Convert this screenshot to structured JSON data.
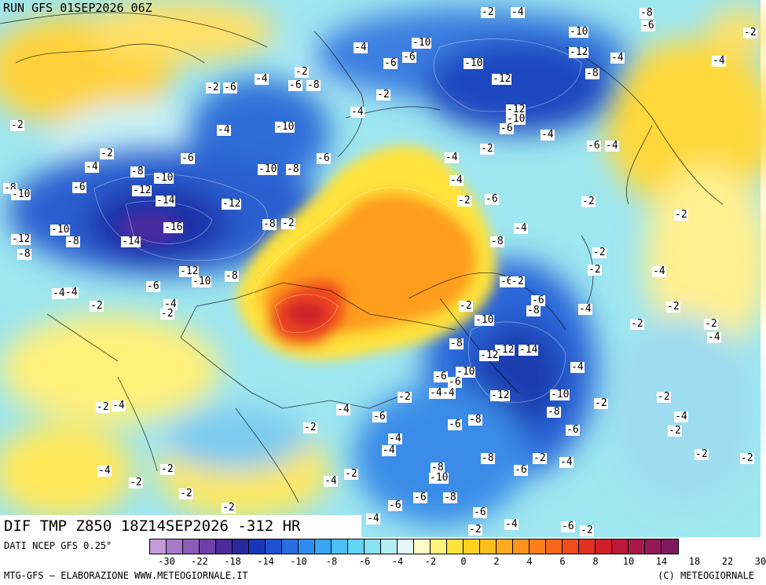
{
  "header": {
    "run_title": "RUN GFS 01SEP2026 06Z"
  },
  "map": {
    "subtitle": "DIF TMP Z850 18Z14SEP2026 -312 HR",
    "contour_labels": [
      "-2",
      "-4",
      "-6",
      "-8",
      "-10",
      "-12",
      "-14",
      "-16",
      "-6",
      "-2",
      "-4",
      "-8",
      "-10",
      "-12"
    ]
  },
  "footer": {
    "data_source": "DATI NCEP GFS 0.25°",
    "credit_left": "MTG-GFS — ELABORAZIONE WWW.METEOGIORNALE.IT",
    "credit_right": "(C) METEOGIORNALE"
  },
  "legend": {
    "tick_labels": [
      "-30",
      "-22",
      "-18",
      "-14",
      "-10",
      "-8",
      "-6",
      "-4",
      "-2",
      "0",
      "2",
      "4",
      "6",
      "8",
      "10",
      "14",
      "18",
      "22",
      "30"
    ],
    "colors": [
      "#c49ad8",
      "#a77bc8",
      "#8b5db8",
      "#7040a8",
      "#4b2a9a",
      "#2a2aa0",
      "#1838b8",
      "#1e50d0",
      "#2a6ee0",
      "#2e8cf0",
      "#38a6f4",
      "#4cc0f6",
      "#62d4f4",
      "#88e2f2",
      "#b4eef4",
      "#e2f8f6",
      "#fffbc8",
      "#fff27a",
      "#ffe23a",
      "#ffd01e",
      "#ffbe1c",
      "#ffaa1c",
      "#ff941c",
      "#ff7e1c",
      "#f8661c",
      "#f04c1c",
      "#e0321e",
      "#d0202a",
      "#bc1a3a",
      "#a81848",
      "#941856",
      "#801860"
    ]
  },
  "colors": {
    "cold_deep": "#1e2aa8",
    "cold": "#2e8cf0",
    "neutral": "#e6f8fa",
    "warm": "#ffe23a",
    "hot": "#f04c1c",
    "hottest": "#d0202a"
  }
}
